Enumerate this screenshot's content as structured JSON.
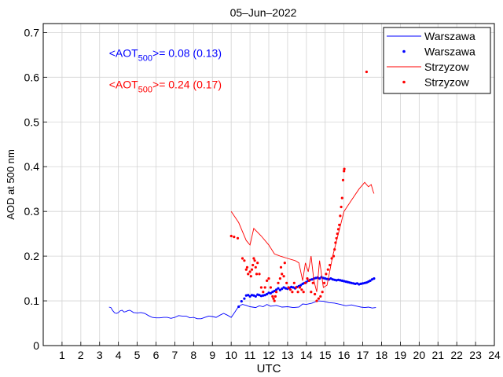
{
  "chart_data": {
    "type": "line",
    "title": "05–Jun–2022",
    "xlabel": "UTC",
    "ylabel": "AOD at 500 nm",
    "xlim": [
      0,
      24
    ],
    "ylim": [
      0,
      0.72
    ],
    "x_ticks": [
      "1",
      "2",
      "3",
      "4",
      "5",
      "6",
      "7",
      "8",
      "9",
      "10",
      "11",
      "12",
      "13",
      "14",
      "15",
      "16",
      "17",
      "18",
      "19",
      "20",
      "21",
      "22",
      "23",
      "24"
    ],
    "y_ticks": [
      "0",
      "0.1",
      "0.2",
      "0.3",
      "0.4",
      "0.5",
      "0.6",
      "0.7"
    ],
    "grid": true,
    "legend_position": "top-right",
    "colors": {
      "warszawa": "#0000ff",
      "strzyzow": "#ff0000"
    },
    "annotations": [
      {
        "prefix": "<AOT",
        "sub": "500",
        "suffix": ">= 0.08 (0.13)",
        "color": "#0000ff",
        "x": 3.5,
        "y": 0.645
      },
      {
        "prefix": "<AOT",
        "sub": "500",
        "suffix": ">= 0.24 (0.17)",
        "color": "#ff0000",
        "x": 3.5,
        "y": 0.575
      }
    ],
    "series": [
      {
        "name": "Warszawa",
        "kind": "line",
        "color": "#0000ff",
        "points": [
          [
            3.5,
            0.086
          ],
          [
            3.6,
            0.085
          ],
          [
            3.7,
            0.078
          ],
          [
            3.8,
            0.073
          ],
          [
            3.9,
            0.072
          ],
          [
            4.0,
            0.074
          ],
          [
            4.1,
            0.078
          ],
          [
            4.2,
            0.079
          ],
          [
            4.3,
            0.075
          ],
          [
            4.4,
            0.076
          ],
          [
            4.5,
            0.078
          ],
          [
            4.6,
            0.079
          ],
          [
            4.7,
            0.077
          ],
          [
            4.8,
            0.074
          ],
          [
            5.0,
            0.073
          ],
          [
            5.2,
            0.074
          ],
          [
            5.4,
            0.072
          ],
          [
            5.6,
            0.067
          ],
          [
            5.8,
            0.063
          ],
          [
            6.0,
            0.062
          ],
          [
            6.2,
            0.062
          ],
          [
            6.4,
            0.063
          ],
          [
            6.6,
            0.063
          ],
          [
            6.8,
            0.061
          ],
          [
            7.0,
            0.063
          ],
          [
            7.2,
            0.067
          ],
          [
            7.4,
            0.066
          ],
          [
            7.6,
            0.066
          ],
          [
            7.8,
            0.062
          ],
          [
            8.0,
            0.063
          ],
          [
            8.2,
            0.06
          ],
          [
            8.4,
            0.06
          ],
          [
            8.6,
            0.063
          ],
          [
            8.8,
            0.066
          ],
          [
            9.0,
            0.065
          ],
          [
            9.2,
            0.063
          ],
          [
            9.4,
            0.068
          ],
          [
            9.6,
            0.072
          ],
          [
            9.8,
            0.068
          ],
          [
            10.0,
            0.063
          ],
          [
            10.2,
            0.075
          ],
          [
            10.4,
            0.088
          ],
          [
            10.6,
            0.092
          ],
          [
            10.8,
            0.09
          ],
          [
            11.0,
            0.087
          ],
          [
            11.3,
            0.085
          ],
          [
            11.5,
            0.089
          ],
          [
            11.7,
            0.087
          ],
          [
            11.9,
            0.092
          ],
          [
            12.1,
            0.088
          ],
          [
            12.4,
            0.09
          ],
          [
            12.7,
            0.086
          ],
          [
            13.0,
            0.087
          ],
          [
            13.3,
            0.085
          ],
          [
            13.6,
            0.086
          ],
          [
            13.8,
            0.093
          ],
          [
            14.0,
            0.092
          ],
          [
            14.3,
            0.095
          ],
          [
            14.6,
            0.1
          ],
          [
            14.9,
            0.099
          ],
          [
            15.2,
            0.096
          ],
          [
            15.5,
            0.095
          ],
          [
            15.8,
            0.092
          ],
          [
            16.1,
            0.089
          ],
          [
            16.4,
            0.091
          ],
          [
            16.7,
            0.088
          ],
          [
            16.9,
            0.086
          ],
          [
            17.1,
            0.085
          ],
          [
            17.3,
            0.086
          ],
          [
            17.5,
            0.084
          ],
          [
            17.7,
            0.085
          ]
        ]
      },
      {
        "name": "Warszawa",
        "kind": "dots",
        "color": "#0000ff",
        "points": [
          [
            10.4,
            0.087
          ],
          [
            10.55,
            0.099
          ],
          [
            10.7,
            0.105
          ],
          [
            10.8,
            0.112
          ],
          [
            10.9,
            0.113
          ],
          [
            11.0,
            0.11
          ],
          [
            11.1,
            0.113
          ],
          [
            11.2,
            0.112
          ],
          [
            11.3,
            0.11
          ],
          [
            11.4,
            0.114
          ],
          [
            11.5,
            0.113
          ],
          [
            11.6,
            0.111
          ],
          [
            11.7,
            0.112
          ],
          [
            11.8,
            0.113
          ],
          [
            11.9,
            0.115
          ],
          [
            12.0,
            0.118
          ],
          [
            12.1,
            0.117
          ],
          [
            12.2,
            0.12
          ],
          [
            12.3,
            0.122
          ],
          [
            12.4,
            0.125
          ],
          [
            12.5,
            0.128
          ],
          [
            12.6,
            0.124
          ],
          [
            12.7,
            0.127
          ],
          [
            12.8,
            0.13
          ],
          [
            12.9,
            0.128
          ],
          [
            13.0,
            0.127
          ],
          [
            13.1,
            0.129
          ],
          [
            13.2,
            0.131
          ],
          [
            13.3,
            0.13
          ],
          [
            13.4,
            0.128
          ],
          [
            13.5,
            0.131
          ],
          [
            13.6,
            0.133
          ],
          [
            13.7,
            0.135
          ],
          [
            13.8,
            0.138
          ],
          [
            13.9,
            0.14
          ],
          [
            14.0,
            0.142
          ],
          [
            14.1,
            0.145
          ],
          [
            14.2,
            0.147
          ],
          [
            14.3,
            0.148
          ],
          [
            14.4,
            0.15
          ],
          [
            14.5,
            0.151
          ],
          [
            14.6,
            0.152
          ],
          [
            14.7,
            0.15
          ],
          [
            14.8,
            0.153
          ],
          [
            14.9,
            0.151
          ],
          [
            15.0,
            0.15
          ],
          [
            15.1,
            0.149
          ],
          [
            15.2,
            0.148
          ],
          [
            15.3,
            0.15
          ],
          [
            15.4,
            0.148
          ],
          [
            15.5,
            0.147
          ],
          [
            15.6,
            0.146
          ],
          [
            15.7,
            0.147
          ],
          [
            15.8,
            0.146
          ],
          [
            15.9,
            0.145
          ],
          [
            16.0,
            0.144
          ],
          [
            16.1,
            0.143
          ],
          [
            16.2,
            0.142
          ],
          [
            16.3,
            0.141
          ],
          [
            16.4,
            0.14
          ],
          [
            16.5,
            0.139
          ],
          [
            16.6,
            0.138
          ],
          [
            16.7,
            0.139
          ],
          [
            16.8,
            0.137
          ],
          [
            16.9,
            0.138
          ],
          [
            17.0,
            0.139
          ],
          [
            17.1,
            0.14
          ],
          [
            17.2,
            0.141
          ],
          [
            17.3,
            0.143
          ],
          [
            17.4,
            0.145
          ],
          [
            17.5,
            0.148
          ],
          [
            17.6,
            0.15
          ]
        ]
      },
      {
        "name": "Strzyzow",
        "kind": "line",
        "color": "#ff0000",
        "points": [
          [
            10.0,
            0.3
          ],
          [
            10.4,
            0.275
          ],
          [
            10.8,
            0.235
          ],
          [
            11.0,
            0.225
          ],
          [
            11.2,
            0.262
          ],
          [
            11.6,
            0.245
          ],
          [
            12.0,
            0.225
          ],
          [
            12.3,
            0.205
          ],
          [
            12.6,
            0.2
          ],
          [
            13.0,
            0.195
          ],
          [
            13.4,
            0.19
          ],
          [
            13.6,
            0.185
          ],
          [
            13.8,
            0.145
          ],
          [
            13.95,
            0.185
          ],
          [
            14.1,
            0.165
          ],
          [
            14.25,
            0.2
          ],
          [
            14.4,
            0.145
          ],
          [
            14.55,
            0.12
          ],
          [
            14.7,
            0.19
          ],
          [
            14.9,
            0.13
          ],
          [
            15.1,
            0.135
          ],
          [
            15.4,
            0.2
          ],
          [
            15.7,
            0.25
          ],
          [
            16.0,
            0.3
          ],
          [
            16.4,
            0.325
          ],
          [
            16.8,
            0.35
          ],
          [
            17.1,
            0.365
          ],
          [
            17.3,
            0.355
          ],
          [
            17.45,
            0.36
          ],
          [
            17.55,
            0.345
          ],
          [
            17.6,
            0.34
          ]
        ]
      },
      {
        "name": "Strzyzow",
        "kind": "dots",
        "color": "#ff0000",
        "points": [
          [
            10.0,
            0.245
          ],
          [
            10.15,
            0.243
          ],
          [
            10.35,
            0.24
          ],
          [
            10.6,
            0.195
          ],
          [
            10.7,
            0.19
          ],
          [
            10.8,
            0.17
          ],
          [
            10.85,
            0.175
          ],
          [
            10.9,
            0.16
          ],
          [
            11.0,
            0.165
          ],
          [
            11.05,
            0.155
          ],
          [
            11.1,
            0.17
          ],
          [
            11.15,
            0.18
          ],
          [
            11.2,
            0.195
          ],
          [
            11.25,
            0.19
          ],
          [
            11.3,
            0.175
          ],
          [
            11.35,
            0.16
          ],
          [
            11.4,
            0.185
          ],
          [
            11.5,
            0.16
          ],
          [
            11.6,
            0.13
          ],
          [
            11.7,
            0.12
          ],
          [
            11.8,
            0.13
          ],
          [
            11.9,
            0.145
          ],
          [
            12.0,
            0.15
          ],
          [
            12.1,
            0.13
          ],
          [
            12.2,
            0.11
          ],
          [
            12.25,
            0.105
          ],
          [
            12.3,
            0.1
          ],
          [
            12.35,
            0.11
          ],
          [
            12.4,
            0.12
          ],
          [
            12.5,
            0.14
          ],
          [
            12.6,
            0.15
          ],
          [
            12.65,
            0.175
          ],
          [
            12.7,
            0.16
          ],
          [
            12.8,
            0.155
          ],
          [
            12.85,
            0.185
          ],
          [
            12.95,
            0.14
          ],
          [
            13.05,
            0.13
          ],
          [
            13.15,
            0.125
          ],
          [
            13.25,
            0.12
          ],
          [
            13.35,
            0.14
          ],
          [
            13.45,
            0.13
          ],
          [
            13.55,
            0.12
          ],
          [
            13.65,
            0.13
          ],
          [
            13.75,
            0.125
          ],
          [
            13.85,
            0.12
          ],
          [
            13.95,
            0.14
          ],
          [
            14.05,
            0.15
          ],
          [
            14.15,
            0.145
          ],
          [
            14.25,
            0.12
          ],
          [
            14.35,
            0.14
          ],
          [
            14.45,
            0.115
          ],
          [
            14.55,
            0.1
          ],
          [
            14.65,
            0.105
          ],
          [
            14.75,
            0.11
          ],
          [
            14.85,
            0.12
          ],
          [
            14.95,
            0.14
          ],
          [
            15.05,
            0.16
          ],
          [
            15.15,
            0.17
          ],
          [
            15.25,
            0.18
          ],
          [
            15.35,
            0.195
          ],
          [
            15.45,
            0.2
          ],
          [
            15.5,
            0.215
          ],
          [
            15.55,
            0.23
          ],
          [
            15.6,
            0.24
          ],
          [
            15.65,
            0.25
          ],
          [
            15.7,
            0.26
          ],
          [
            15.75,
            0.27
          ],
          [
            15.8,
            0.29
          ],
          [
            15.85,
            0.31
          ],
          [
            15.9,
            0.33
          ],
          [
            15.95,
            0.37
          ],
          [
            16.0,
            0.39
          ],
          [
            16.02,
            0.395
          ],
          [
            17.2,
            0.612
          ]
        ]
      }
    ]
  }
}
